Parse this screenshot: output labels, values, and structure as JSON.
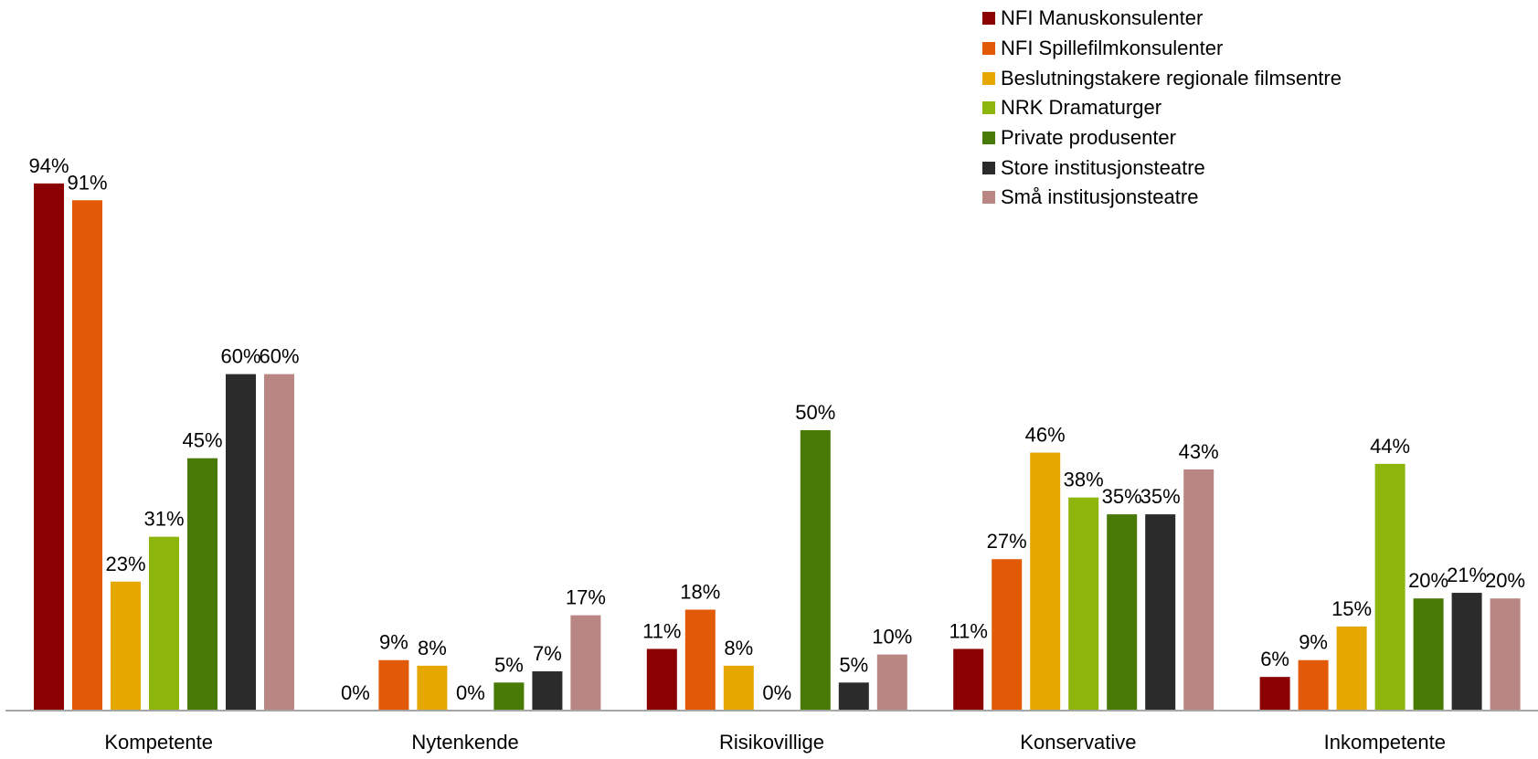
{
  "chart_data": {
    "type": "bar",
    "categories": [
      "Kompetente",
      "Nytenkende",
      "Risikovillige",
      "Konservative",
      "Inkompetente"
    ],
    "series": [
      {
        "name": "NFI Manuskonsulenter",
        "color": "#8B0000",
        "values": [
          94,
          0,
          11,
          11,
          6
        ]
      },
      {
        "name": "NFI Spillefilmkonsulenter",
        "color": "#E35A06",
        "values": [
          91,
          9,
          18,
          27,
          9
        ]
      },
      {
        "name": "Beslutningstakere regionale filmsentre",
        "color": "#E6A700",
        "values": [
          23,
          8,
          8,
          46,
          15
        ]
      },
      {
        "name": "NRK Dramaturger",
        "color": "#8DB50B",
        "values": [
          31,
          0,
          0,
          38,
          44
        ]
      },
      {
        "name": "Private produsenter",
        "color": "#4A7A06",
        "values": [
          45,
          5,
          50,
          35,
          20
        ]
      },
      {
        "name": "Store institusjonsteatre",
        "color": "#2B2B2B",
        "values": [
          60,
          7,
          5,
          35,
          21
        ]
      },
      {
        "name": "Små institusjonsteatre",
        "color": "#B98684",
        "values": [
          60,
          17,
          10,
          43,
          20
        ]
      }
    ],
    "value_suffix": "%",
    "ylim": [
      0,
      100
    ],
    "grid": false,
    "legend_position": "top-right",
    "title": "",
    "xlabel": "",
    "ylabel": ""
  }
}
